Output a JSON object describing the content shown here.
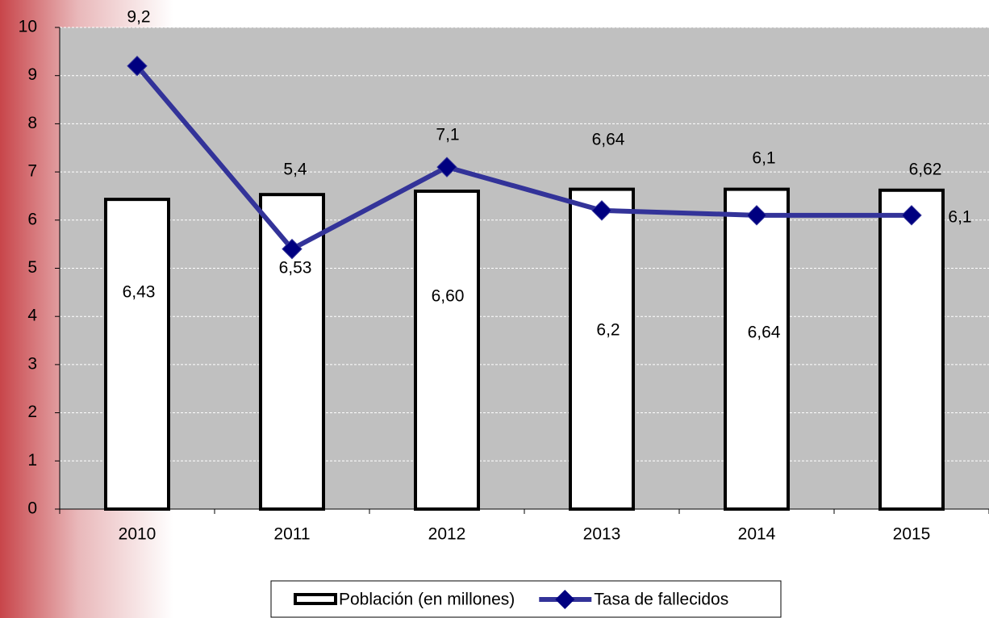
{
  "chart_data": {
    "type": "bar_line",
    "categories": [
      "2010",
      "2011",
      "2012",
      "2013",
      "2014",
      "2015"
    ],
    "series": [
      {
        "name": "Población (en millones)",
        "type": "bar",
        "color": "#ffffff",
        "values": [
          6.43,
          6.53,
          6.6,
          6.64,
          6.64,
          6.62
        ],
        "value_labels": [
          "6,43",
          "6,53",
          "6,60",
          "6,64",
          "6,64",
          "6,62"
        ]
      },
      {
        "name": "Tasa de fallecidos",
        "type": "line",
        "color": "#333399",
        "values": [
          9.2,
          5.4,
          7.1,
          6.2,
          6.1,
          6.1
        ],
        "value_labels": [
          "9,2",
          "5,4",
          "7,1",
          "6,2",
          "6,1",
          "6,1"
        ]
      }
    ],
    "ylim": [
      0,
      10
    ],
    "yticks": [
      0,
      1,
      2,
      3,
      4,
      5,
      6,
      7,
      8,
      9,
      10
    ],
    "grid": true,
    "legend": "bottom"
  }
}
